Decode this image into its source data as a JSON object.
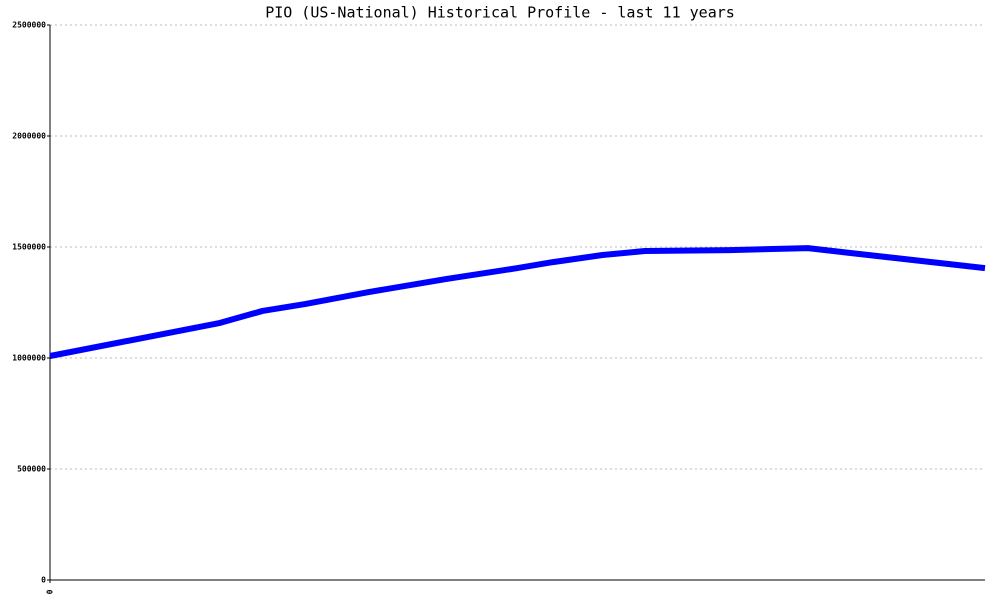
{
  "chart_data": {
    "type": "line",
    "title": "PIO (US-National) Historical Profile - last 11 years",
    "x": [
      0,
      24,
      30,
      36,
      45,
      56,
      66,
      71,
      78,
      84,
      96,
      107,
      113,
      132
    ],
    "series": [
      {
        "color": "#0000ff",
        "values": [
          1009000,
          1158000,
          1212000,
          1243000,
          1297000,
          1356000,
          1405000,
          1432000,
          1464000,
          1482000,
          1486000,
          1495000,
          1473000,
          1405000
        ]
      }
    ],
    "xlim": [
      0,
      132
    ],
    "xticks": [
      0
    ],
    "ylim": [
      0,
      2500000
    ],
    "yticks": [
      0,
      500000,
      1000000,
      1500000,
      2000000,
      2500000
    ],
    "grid": true
  }
}
